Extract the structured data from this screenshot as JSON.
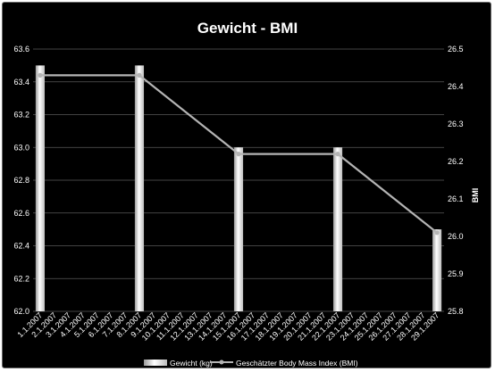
{
  "chart_data": {
    "type": "bar+line",
    "title": "Gewicht - BMI",
    "categories": [
      "1.1.2007",
      "2.1.2007",
      "3.1.2007",
      "4.1.2007",
      "5.1.2007",
      "6.1.2007",
      "7.1.2007",
      "8.1.2007",
      "9.1.2007",
      "10.1.2007",
      "11.1.2007",
      "12.1.2007",
      "13.1.2007",
      "14.1.2007",
      "15.1.2007",
      "16.1.2007",
      "17.1.2007",
      "18.1.2007",
      "19.1.2007",
      "20.1.2007",
      "21.1.2007",
      "22.1.2007",
      "23.1.2007",
      "24.1.2007",
      "25.1.2007",
      "26.1.2007",
      "27.1.2007",
      "28.1.2007",
      "29.1.2007"
    ],
    "series": [
      {
        "name": "Gewicht (kg)",
        "type": "bar",
        "axis": "left",
        "values": [
          63.5,
          null,
          null,
          null,
          null,
          null,
          null,
          63.5,
          null,
          null,
          null,
          null,
          null,
          null,
          63.0,
          null,
          null,
          null,
          null,
          null,
          null,
          63.0,
          null,
          null,
          null,
          null,
          null,
          null,
          62.5
        ]
      },
      {
        "name": "Geschätzter Body Mass Index (BMI)",
        "type": "line",
        "axis": "right",
        "values": [
          26.43,
          null,
          null,
          null,
          null,
          null,
          null,
          26.43,
          null,
          null,
          null,
          null,
          null,
          null,
          26.22,
          null,
          null,
          null,
          null,
          null,
          null,
          26.22,
          null,
          null,
          null,
          null,
          null,
          null,
          26.01
        ]
      }
    ],
    "yleft": {
      "label": "",
      "ylim": [
        62.0,
        63.6
      ],
      "ticks": [
        "62.0",
        "62.2",
        "62.4",
        "62.6",
        "62.8",
        "63.0",
        "63.2",
        "63.4",
        "63.6"
      ]
    },
    "yright": {
      "label": "BMI",
      "ylim": [
        25.8,
        26.5
      ],
      "ticks": [
        "25.8",
        "25.9",
        "26.0",
        "26.1",
        "26.2",
        "26.3",
        "26.4",
        "26.5"
      ]
    },
    "grid": true,
    "legend": "bottom",
    "colors": {
      "background": "#000000",
      "gridline": "#5a5a5a",
      "bar_light": "#ffffff",
      "bar_dark": "#9a9a9a",
      "line": "#b4b4b4",
      "text": "#ffffff"
    }
  }
}
